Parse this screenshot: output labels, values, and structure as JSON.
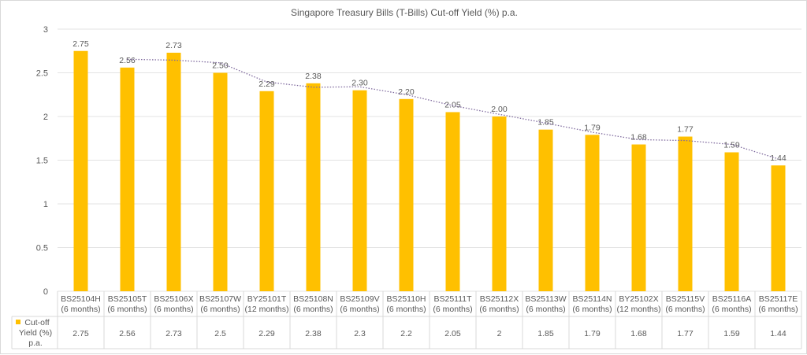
{
  "chart_data": {
    "type": "bar",
    "title": "Singapore Treasury Bills (T-Bills) Cut-off Yield (%) p.a.",
    "categories": [
      [
        "BS25104H",
        "(6 months)"
      ],
      [
        "BS25105T",
        "(6 months)"
      ],
      [
        "BS25106X",
        "(6 months)"
      ],
      [
        "BS25107W",
        "(6 months)"
      ],
      [
        "BY25101T",
        "(12 months)"
      ],
      [
        "BS25108N",
        "(6 months)"
      ],
      [
        "BS25109V",
        "(6 months)"
      ],
      [
        "BS25110H",
        "(6 months)"
      ],
      [
        "BS25111T",
        "(6 months)"
      ],
      [
        "BS25112X",
        "(6 months)"
      ],
      [
        "BS25113W",
        "(6 months)"
      ],
      [
        "BS25114N",
        "(6 months)"
      ],
      [
        "BY25102X",
        "(12 months)"
      ],
      [
        "BS25115V",
        "(6 months)"
      ],
      [
        "BS25116A",
        "(6 months)"
      ],
      [
        "BS25117E",
        "(6 months)"
      ]
    ],
    "series": [
      {
        "name": "Cut-off Yield (%) p.a.",
        "values": [
          2.75,
          2.56,
          2.73,
          2.5,
          2.29,
          2.38,
          2.3,
          2.2,
          2.05,
          2,
          1.85,
          1.79,
          1.68,
          1.77,
          1.59,
          1.44
        ],
        "data_labels": [
          "2.75",
          "2.56",
          "2.73",
          "2.50",
          "2.29",
          "2.38",
          "2.30",
          "2.20",
          "2.05",
          "2.00",
          "1.85",
          "1.79",
          "1.68",
          "1.77",
          "1.59",
          "1.44"
        ],
        "table_labels": [
          "2.75",
          "2.56",
          "2.73",
          "2.5",
          "2.29",
          "2.38",
          "2.3",
          "2.2",
          "2.05",
          "2",
          "1.85",
          "1.79",
          "1.68",
          "1.77",
          "1.59",
          "1.44"
        ],
        "color": "#FFC000"
      }
    ],
    "trendline": {
      "type": "2-period moving average",
      "style": "dotted",
      "color": "#7F6A9E"
    },
    "ylim": [
      0,
      3
    ],
    "yticks": [
      "0",
      "0.5",
      "1",
      "1.5",
      "2",
      "2.5",
      "3"
    ],
    "grid": true,
    "legend": "data-table",
    "legend_label_lines": [
      "Cut-off",
      "Yield (%)",
      "p.a."
    ]
  }
}
